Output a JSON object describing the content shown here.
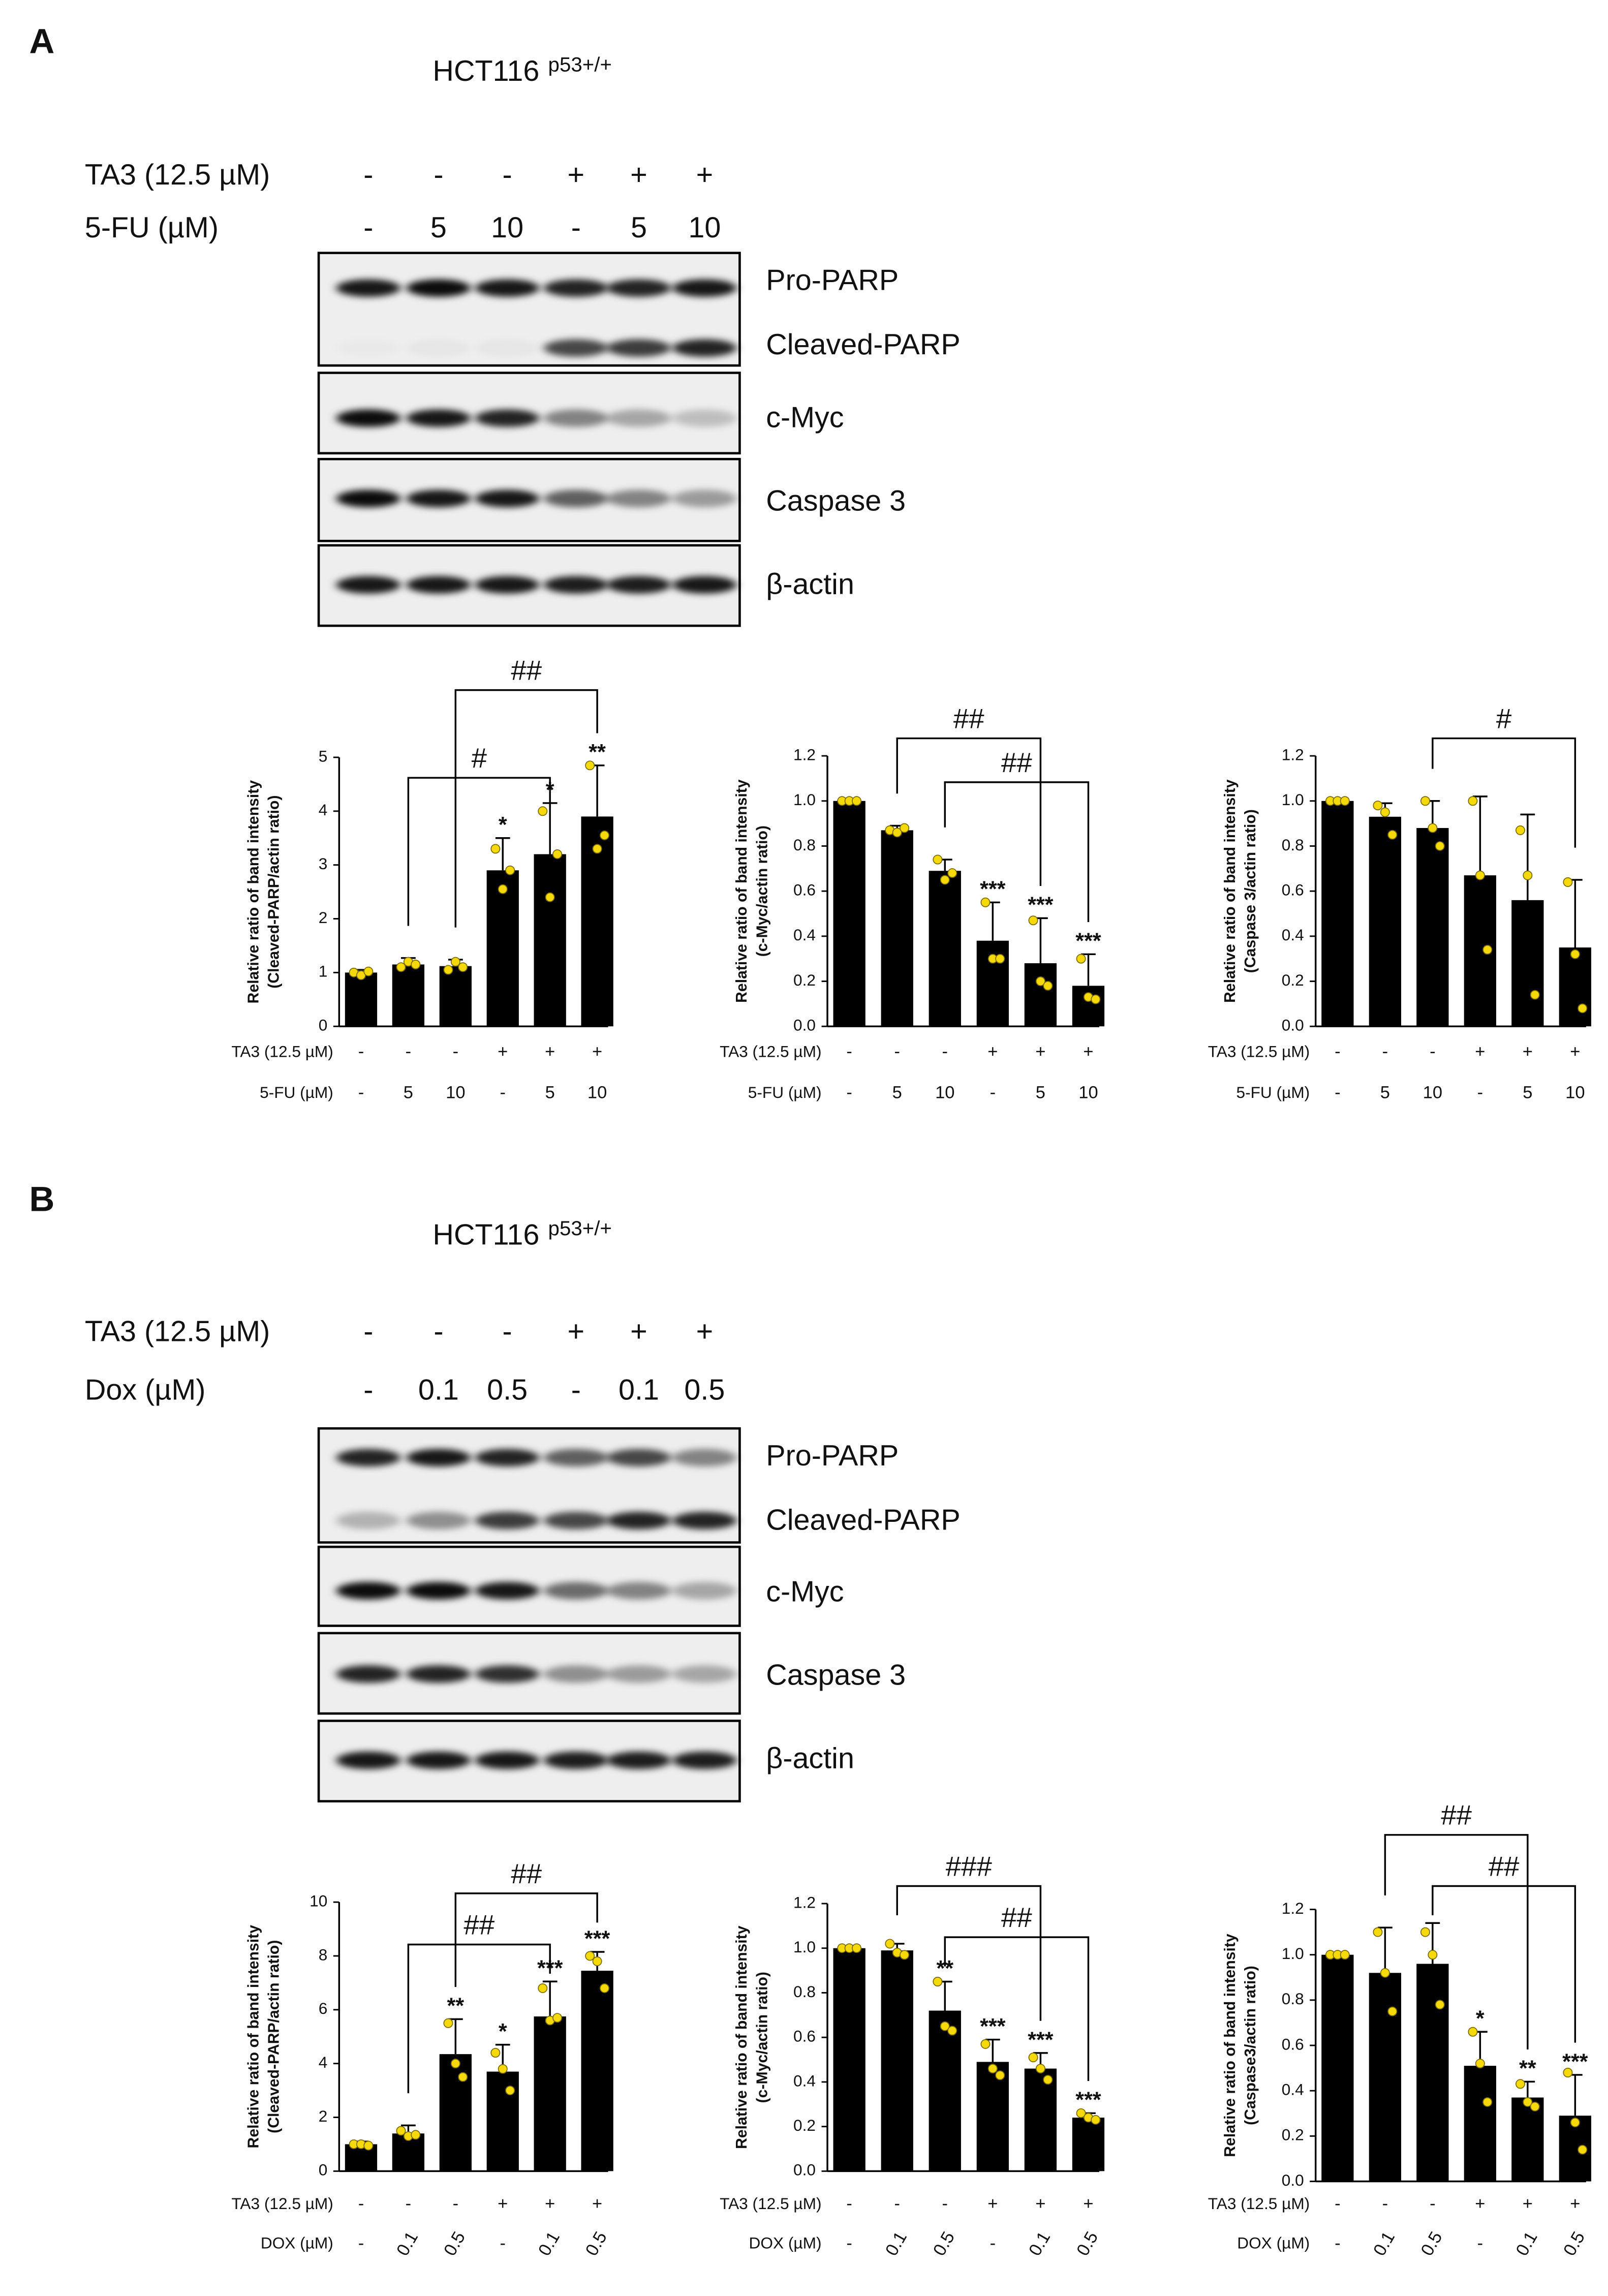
{
  "panels": [
    {
      "label": "A",
      "cell_line": "HCT116",
      "cell_line_sup": "p53+/+",
      "treatments": [
        {
          "name": "TA3 (12.5 µM)",
          "values": [
            "-",
            "-",
            "-",
            "+",
            "+",
            "+"
          ]
        },
        {
          "name": "5-FU (µM)",
          "values": [
            "-",
            "5",
            "10",
            "-",
            "5",
            "10"
          ]
        }
      ],
      "blot_labels": [
        "Pro-PARP",
        "Cleaved-PARP",
        "c-Myc",
        "Caspase 3",
        "β-actin"
      ]
    },
    {
      "label": "B",
      "cell_line": "HCT116",
      "cell_line_sup": "p53+/+",
      "treatments": [
        {
          "name": "TA3 (12.5 µM)",
          "values": [
            "-",
            "-",
            "-",
            "+",
            "+",
            "+"
          ]
        },
        {
          "name": "Dox (µM)",
          "values": [
            "-",
            "0.1",
            "0.5",
            "-",
            "0.1",
            "0.5"
          ]
        }
      ],
      "blot_labels": [
        "Pro-PARP",
        "Cleaved-PARP",
        "c-Myc",
        "Caspase 3",
        "β-actin"
      ]
    }
  ],
  "chart_data": [
    {
      "type": "bar",
      "ylabel": [
        "Relative ratio of band intensity",
        "(Cleaved-PARP/actin ratio)"
      ],
      "values": [
        1.0,
        1.15,
        1.12,
        2.9,
        3.2,
        3.9
      ],
      "errors": [
        0.05,
        0.12,
        0.12,
        0.6,
        0.95,
        0.95
      ],
      "points": [
        [
          1.0,
          0.95,
          1.02
        ],
        [
          1.1,
          1.2,
          1.15
        ],
        [
          1.05,
          1.2,
          1.1
        ],
        [
          3.3,
          2.55,
          2.9
        ],
        [
          4.0,
          2.4,
          3.2
        ],
        [
          4.85,
          3.3,
          3.55
        ]
      ],
      "significance": [
        null,
        null,
        null,
        "*",
        "*",
        "**"
      ],
      "brackets": [
        {
          "from": 1,
          "to": 4,
          "label": "#"
        },
        {
          "from": 2,
          "to": 5,
          "label": "##"
        }
      ],
      "ylim": [
        0,
        5
      ],
      "yticks": [
        0,
        1,
        2,
        3,
        4,
        5
      ],
      "color": "#000000",
      "point_color": "#f5d90a",
      "conditions": [
        {
          "name": "TA3 (12.5 µM)",
          "labels": [
            "-",
            "-",
            "-",
            "+",
            "+",
            "+"
          ]
        },
        {
          "name": "5-FU (µM)",
          "labels": [
            "-",
            "5",
            "10",
            "-",
            "5",
            "10"
          ]
        }
      ]
    },
    {
      "type": "bar",
      "ylabel": [
        "Relative ratio of band intensity",
        "(c-Myc/actin ratio)"
      ],
      "values": [
        1.0,
        0.87,
        0.69,
        0.38,
        0.28,
        0.18
      ],
      "errors": [
        0.01,
        0.02,
        0.05,
        0.17,
        0.2,
        0.14
      ],
      "points": [
        [
          1.0,
          1.0,
          1.0
        ],
        [
          0.87,
          0.86,
          0.88
        ],
        [
          0.74,
          0.65,
          0.68
        ],
        [
          0.55,
          0.3,
          0.3
        ],
        [
          0.47,
          0.2,
          0.18
        ],
        [
          0.3,
          0.13,
          0.12
        ]
      ],
      "significance": [
        null,
        null,
        null,
        "***",
        "***",
        "***"
      ],
      "brackets": [
        {
          "from": 2,
          "to": 5,
          "label": "##"
        },
        {
          "from": 1,
          "to": 4,
          "label": "##"
        }
      ],
      "ylim": [
        0,
        1.2
      ],
      "yticks": [
        {
          "value": 0,
          "label": "0.0"
        },
        0.2,
        0.4,
        0.6,
        0.8,
        {
          "value": 1,
          "label": "1.0"
        },
        1.2
      ],
      "color": "#000000",
      "point_color": "#f5d90a",
      "conditions": [
        {
          "name": "TA3 (12.5 µM)",
          "labels": [
            "-",
            "-",
            "-",
            "+",
            "+",
            "+"
          ]
        },
        {
          "name": "5-FU (µM)",
          "labels": [
            "-",
            "5",
            "10",
            "-",
            "5",
            "10"
          ]
        }
      ]
    },
    {
      "type": "bar",
      "ylabel": [
        "Relative ratio of band intensity",
        "(Caspase 3/actin ratio)"
      ],
      "values": [
        1.0,
        0.93,
        0.88,
        0.67,
        0.56,
        0.35
      ],
      "errors": [
        0.01,
        0.06,
        0.12,
        0.35,
        0.38,
        0.3
      ],
      "points": [
        [
          1.0,
          1.0,
          1.0
        ],
        [
          0.98,
          0.95,
          0.85
        ],
        [
          1.0,
          0.88,
          0.8
        ],
        [
          1.0,
          0.67,
          0.34
        ],
        [
          0.87,
          0.67,
          0.14
        ],
        [
          0.64,
          0.32,
          0.08
        ]
      ],
      "significance": [
        null,
        null,
        null,
        null,
        null,
        null
      ],
      "brackets": [
        {
          "from": 2,
          "to": 5,
          "label": "#"
        }
      ],
      "ylim": [
        0,
        1.2
      ],
      "yticks": [
        {
          "value": 0,
          "label": "0.0"
        },
        0.2,
        0.4,
        0.6,
        0.8,
        {
          "value": 1,
          "label": "1.0"
        },
        1.2
      ],
      "color": "#000000",
      "point_color": "#f5d90a",
      "conditions": [
        {
          "name": "TA3 (12.5 µM)",
          "labels": [
            "-",
            "-",
            "-",
            "+",
            "+",
            "+"
          ]
        },
        {
          "name": "5-FU (µM)",
          "labels": [
            "-",
            "5",
            "10",
            "-",
            "5",
            "10"
          ]
        }
      ]
    },
    {
      "type": "bar",
      "ylabel": [
        "Relative ratio of band intensity",
        "(Cleaved-PARP/actin ratio)"
      ],
      "values": [
        1.0,
        1.4,
        4.35,
        3.7,
        5.75,
        7.45
      ],
      "errors": [
        0.1,
        0.3,
        1.3,
        1.0,
        1.3,
        0.7
      ],
      "points": [
        [
          1.0,
          1.0,
          0.95
        ],
        [
          1.5,
          1.3,
          1.35
        ],
        [
          5.5,
          4.0,
          3.5
        ],
        [
          4.4,
          3.8,
          3.0
        ],
        [
          6.8,
          5.6,
          5.7
        ],
        [
          8.0,
          7.8,
          6.8
        ]
      ],
      "significance": [
        null,
        null,
        "**",
        "*",
        "***",
        "***"
      ],
      "brackets": [
        {
          "from": 1,
          "to": 4,
          "label": "##"
        },
        {
          "from": 2,
          "to": 5,
          "label": "##"
        }
      ],
      "ylim": [
        0,
        10
      ],
      "yticks": [
        0,
        2,
        4,
        6,
        8,
        10
      ],
      "color": "#000000",
      "point_color": "#f5d90a",
      "conditions": [
        {
          "name": "TA3 (12.5 µM)",
          "labels": [
            "-",
            "-",
            "-",
            "+",
            "+",
            "+"
          ]
        },
        {
          "name": "DOX (µM)",
          "labels": [
            "-",
            "0.1",
            "0.5",
            "-",
            "0.1",
            "0.5"
          ]
        }
      ]
    },
    {
      "type": "bar",
      "ylabel": [
        "Relative ratio of band intensity",
        "(c-Myc/actin ratio)"
      ],
      "values": [
        1.0,
        0.99,
        0.72,
        0.49,
        0.46,
        0.24
      ],
      "errors": [
        0.01,
        0.03,
        0.13,
        0.1,
        0.07,
        0.02
      ],
      "points": [
        [
          1.0,
          1.0,
          1.0
        ],
        [
          1.02,
          0.98,
          0.97
        ],
        [
          0.85,
          0.65,
          0.63
        ],
        [
          0.57,
          0.46,
          0.43
        ],
        [
          0.51,
          0.46,
          0.41
        ],
        [
          0.26,
          0.24,
          0.23
        ]
      ],
      "significance": [
        null,
        null,
        "**",
        "***",
        "***",
        "***"
      ],
      "brackets": [
        {
          "from": 2,
          "to": 5,
          "label": "##"
        },
        {
          "from": 1,
          "to": 4,
          "label": "###"
        }
      ],
      "ylim": [
        0,
        1.2
      ],
      "yticks": [
        {
          "value": 0,
          "label": "0.0"
        },
        0.2,
        0.4,
        0.6,
        0.8,
        {
          "value": 1,
          "label": "1.0"
        },
        1.2
      ],
      "color": "#000000",
      "point_color": "#f5d90a",
      "conditions": [
        {
          "name": "TA3 (12.5 µM)",
          "labels": [
            "-",
            "-",
            "-",
            "+",
            "+",
            "+"
          ]
        },
        {
          "name": "DOX (µM)",
          "labels": [
            "-",
            "0.1",
            "0.5",
            "-",
            "0.1",
            "0.5"
          ]
        }
      ]
    },
    {
      "type": "bar",
      "ylabel": [
        "Relative ratio of band intensity",
        "(Caspase3/actin ratio)"
      ],
      "values": [
        1.0,
        0.92,
        0.96,
        0.51,
        0.37,
        0.29
      ],
      "errors": [
        0.01,
        0.2,
        0.18,
        0.15,
        0.07,
        0.18
      ],
      "points": [
        [
          1.0,
          1.0,
          1.0
        ],
        [
          1.1,
          0.92,
          0.75
        ],
        [
          1.1,
          1.0,
          0.78
        ],
        [
          0.66,
          0.52,
          0.35
        ],
        [
          0.43,
          0.35,
          0.33
        ],
        [
          0.48,
          0.26,
          0.14
        ]
      ],
      "significance": [
        null,
        null,
        null,
        "*",
        "**",
        "***"
      ],
      "brackets": [
        {
          "from": 2,
          "to": 5,
          "label": "##"
        },
        {
          "from": 1,
          "to": 4,
          "label": "##"
        }
      ],
      "ylim": [
        0,
        1.2
      ],
      "yticks": [
        {
          "value": 0,
          "label": "0.0"
        },
        0.2,
        0.4,
        0.6,
        0.8,
        {
          "value": 1,
          "label": "1.0"
        },
        1.2
      ],
      "color": "#000000",
      "point_color": "#f5d90a",
      "conditions": [
        {
          "name": "TA3 (12.5 µM)",
          "labels": [
            "-",
            "-",
            "-",
            "+",
            "+",
            "+"
          ]
        },
        {
          "name": "DOX (µM)",
          "labels": [
            "-",
            "0.1",
            "0.5",
            "-",
            "0.1",
            "0.5"
          ]
        }
      ]
    }
  ]
}
